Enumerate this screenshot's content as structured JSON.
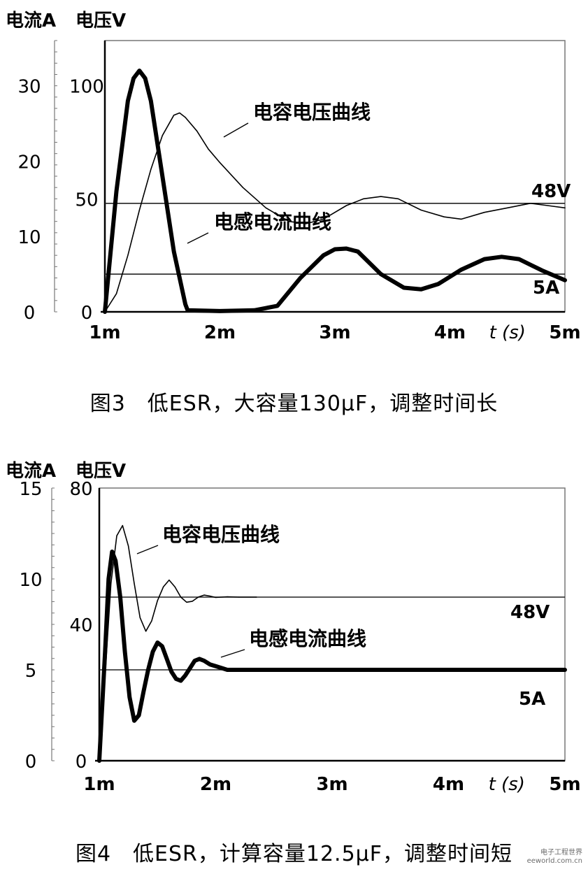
{
  "chart_data": [
    {
      "type": "line",
      "left_axis_label": "电流A",
      "right_axis_label": "电压V",
      "y_current_ticks": [
        "0",
        "10",
        "20",
        "30"
      ],
      "y_voltage_ticks": [
        "0",
        "50",
        "100"
      ],
      "ylim_current": [
        0,
        36
      ],
      "ylim_voltage": [
        0,
        120
      ],
      "x_ticks": [
        "1m",
        "2m",
        "3m",
        "4m",
        "5m"
      ],
      "xlim": [
        1,
        5
      ],
      "xlabel": "t (s)",
      "grid": false,
      "series": [
        {
          "name": "电容电压曲线",
          "axis": "voltage",
          "x": [
            1.0,
            1.1,
            1.2,
            1.3,
            1.4,
            1.5,
            1.6,
            1.65,
            1.7,
            1.8,
            1.9,
            2.0,
            2.2,
            2.4,
            2.6,
            2.75,
            2.9,
            3.1,
            3.25,
            3.4,
            3.55,
            3.75,
            3.95,
            4.1,
            4.3,
            4.5,
            4.7,
            4.85,
            5.0
          ],
          "y": [
            0,
            8,
            25,
            45,
            63,
            78,
            87,
            88,
            86,
            80,
            72,
            66,
            55,
            46,
            40,
            39,
            41,
            47,
            50,
            51,
            50,
            45,
            42,
            41,
            44,
            46,
            48,
            47,
            46
          ]
        },
        {
          "name": "电感电流曲线",
          "axis": "current",
          "x": [
            1.0,
            1.1,
            1.2,
            1.25,
            1.3,
            1.35,
            1.4,
            1.5,
            1.6,
            1.7,
            1.72,
            2.0,
            2.3,
            2.5,
            2.7,
            2.9,
            3.0,
            3.1,
            3.2,
            3.4,
            3.6,
            3.75,
            3.9,
            4.1,
            4.3,
            4.45,
            4.6,
            4.8,
            5.0
          ],
          "y": [
            0,
            16,
            28,
            31,
            32,
            31,
            28,
            18,
            8,
            1,
            0.2,
            0.1,
            0.2,
            0.8,
            4.5,
            7.5,
            8.3,
            8.4,
            8.0,
            5.0,
            3.2,
            3.0,
            3.7,
            5.6,
            7.0,
            7.3,
            7.0,
            5.5,
            4.2
          ]
        }
      ],
      "reference_lines": [
        {
          "label": "48V",
          "axis": "voltage",
          "value": 48
        },
        {
          "label": "5A",
          "axis": "current",
          "value": 5
        }
      ],
      "annotations": [
        "电容电压曲线",
        "电感电流曲线"
      ]
    },
    {
      "type": "line",
      "left_axis_label": "电流A",
      "right_axis_label": "电压V",
      "y_current_ticks": [
        "0",
        "5",
        "10",
        "15"
      ],
      "y_voltage_ticks": [
        "0",
        "40",
        "80"
      ],
      "ylim_current": [
        0,
        15
      ],
      "ylim_voltage": [
        0,
        80
      ],
      "x_ticks": [
        "1m",
        "2m",
        "3m",
        "4m",
        "5m"
      ],
      "xlim": [
        1,
        5
      ],
      "xlabel": "t (s)",
      "grid": false,
      "series": [
        {
          "name": "电容电压曲线",
          "axis": "voltage",
          "x": [
            1.0,
            1.05,
            1.1,
            1.15,
            1.2,
            1.25,
            1.3,
            1.35,
            1.4,
            1.45,
            1.5,
            1.55,
            1.6,
            1.65,
            1.7,
            1.75,
            1.8,
            1.85,
            1.9,
            1.95,
            2.0,
            2.1,
            2.2,
            2.3,
            2.35
          ],
          "y": [
            0,
            25,
            52,
            66,
            69,
            63,
            52,
            42,
            38,
            41,
            47,
            51,
            53,
            51,
            48,
            46.5,
            46.8,
            48,
            48.6,
            48.3,
            47.9,
            48.1,
            48.0,
            48.0,
            48.0
          ]
        },
        {
          "name": "电感电流曲线",
          "axis": "current",
          "x": [
            1.0,
            1.05,
            1.08,
            1.11,
            1.14,
            1.18,
            1.22,
            1.26,
            1.3,
            1.34,
            1.38,
            1.42,
            1.46,
            1.5,
            1.54,
            1.58,
            1.62,
            1.66,
            1.7,
            1.74,
            1.78,
            1.82,
            1.86,
            1.9,
            1.95,
            2.0,
            2.1,
            2.2,
            2.4,
            3.0,
            4.0,
            5.0
          ],
          "y": [
            0,
            6,
            10,
            11.5,
            11,
            9,
            6,
            3.5,
            2.2,
            2.5,
            3.8,
            5,
            6,
            6.5,
            6.3,
            5.6,
            4.9,
            4.5,
            4.4,
            4.7,
            5.1,
            5.5,
            5.6,
            5.5,
            5.3,
            5.2,
            5.0,
            5.0,
            5.0,
            5.0,
            5.0,
            5.0
          ]
        }
      ],
      "reference_lines": [
        {
          "label": "48V",
          "axis": "voltage",
          "value": 48
        },
        {
          "label": "5A",
          "axis": "current",
          "value": 5
        }
      ],
      "annotations": [
        "电容电压曲线",
        "电感电流曲线"
      ]
    }
  ],
  "captions": {
    "fig3": "图3　低ESR，大容量130μF，调整时间长",
    "fig4": "图4　低ESR，计算容量12.5μF，调整时间短"
  },
  "watermark": {
    "line1": "电子工程世界",
    "line2": "eeworld.com.cn"
  },
  "colors": {
    "ink": "#000000",
    "frame": "#777777",
    "ref_line": "#222222"
  }
}
